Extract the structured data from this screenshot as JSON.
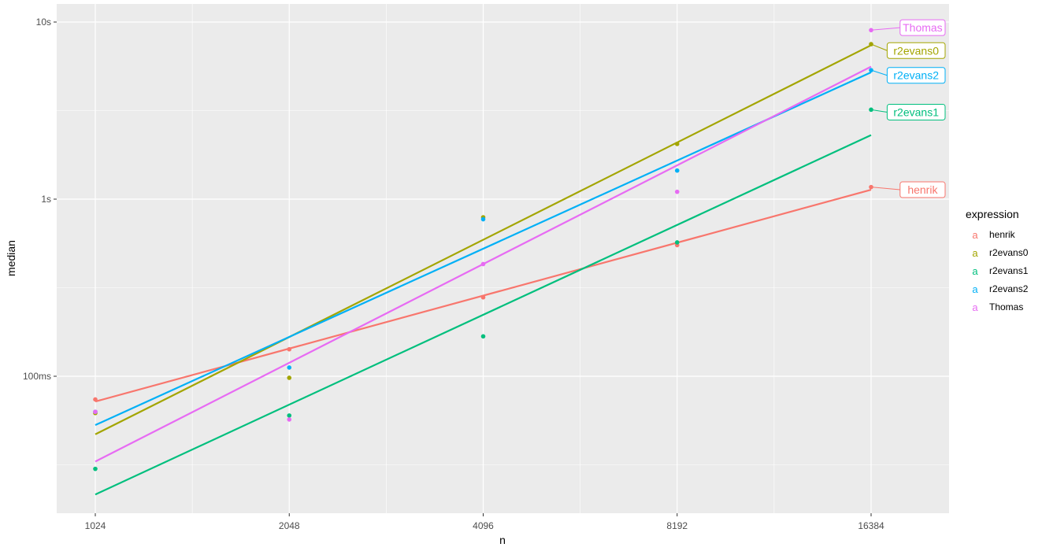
{
  "chart_data": {
    "type": "scatter",
    "title": "",
    "xlabel": "n",
    "ylabel": "median",
    "x_scale": "log2",
    "y_scale": "log10",
    "xlim": [
      1024,
      16384
    ],
    "ylim_seconds": [
      0.018,
      12.5
    ],
    "x_ticks": [
      1024,
      2048,
      4096,
      8192,
      16384
    ],
    "x_tick_labels": [
      "1024",
      "2048",
      "4096",
      "8192",
      "16384"
    ],
    "y_ticks_seconds": [
      0.1,
      1,
      10
    ],
    "y_tick_labels": [
      "100ms",
      "1s",
      "10s"
    ],
    "grid": true,
    "legend_title": "expression",
    "legend_position": "right",
    "legend_key_glyph": "a",
    "series": [
      {
        "name": "henrik",
        "color": "#F8766D",
        "points": [
          [
            1024,
            0.074
          ],
          [
            2048,
            0.142
          ],
          [
            4096,
            0.279
          ],
          [
            8192,
            0.55
          ],
          [
            16384,
            1.17
          ]
        ],
        "fit": [
          [
            1024,
            0.072
          ],
          [
            16384,
            1.13
          ]
        ]
      },
      {
        "name": "r2evans0",
        "color": "#A3A500",
        "points": [
          [
            1024,
            0.062
          ],
          [
            2048,
            0.098
          ],
          [
            4096,
            0.79
          ],
          [
            8192,
            2.05
          ],
          [
            16384,
            7.5
          ]
        ],
        "fit": [
          [
            1024,
            0.047
          ],
          [
            16384,
            7.4
          ]
        ]
      },
      {
        "name": "r2evans1",
        "color": "#00BF7D",
        "points": [
          [
            1024,
            0.03
          ],
          [
            2048,
            0.06
          ],
          [
            4096,
            0.168
          ],
          [
            8192,
            0.57
          ],
          [
            16384,
            3.2
          ]
        ],
        "fit": [
          [
            1024,
            0.0215
          ],
          [
            16384,
            2.3
          ]
        ]
      },
      {
        "name": "r2evans2",
        "color": "#00B0F6",
        "points": [
          [
            1024,
            0.063
          ],
          [
            2048,
            0.112
          ],
          [
            4096,
            0.77
          ],
          [
            8192,
            1.45
          ],
          [
            16384,
            5.35
          ]
        ],
        "fit": [
          [
            1024,
            0.053
          ],
          [
            16384,
            5.2
          ]
        ]
      },
      {
        "name": "Thomas",
        "color": "#E76BF3",
        "points": [
          [
            1024,
            0.063
          ],
          [
            2048,
            0.057
          ],
          [
            4096,
            0.43
          ],
          [
            8192,
            1.1
          ],
          [
            16384,
            9.0
          ]
        ],
        "fit": [
          [
            1024,
            0.033
          ],
          [
            16384,
            5.6
          ]
        ]
      }
    ],
    "end_labels": [
      {
        "series": "Thomas",
        "text": "Thomas",
        "value": 9.3
      },
      {
        "series": "r2evans0",
        "text": "r2evans0",
        "value": 6.9
      },
      {
        "series": "r2evans2",
        "text": "r2evans2",
        "value": 5.0
      },
      {
        "series": "r2evans1",
        "text": "r2evans1",
        "value": 3.1
      },
      {
        "series": "henrik",
        "text": "henrik",
        "value": 1.13
      }
    ]
  }
}
